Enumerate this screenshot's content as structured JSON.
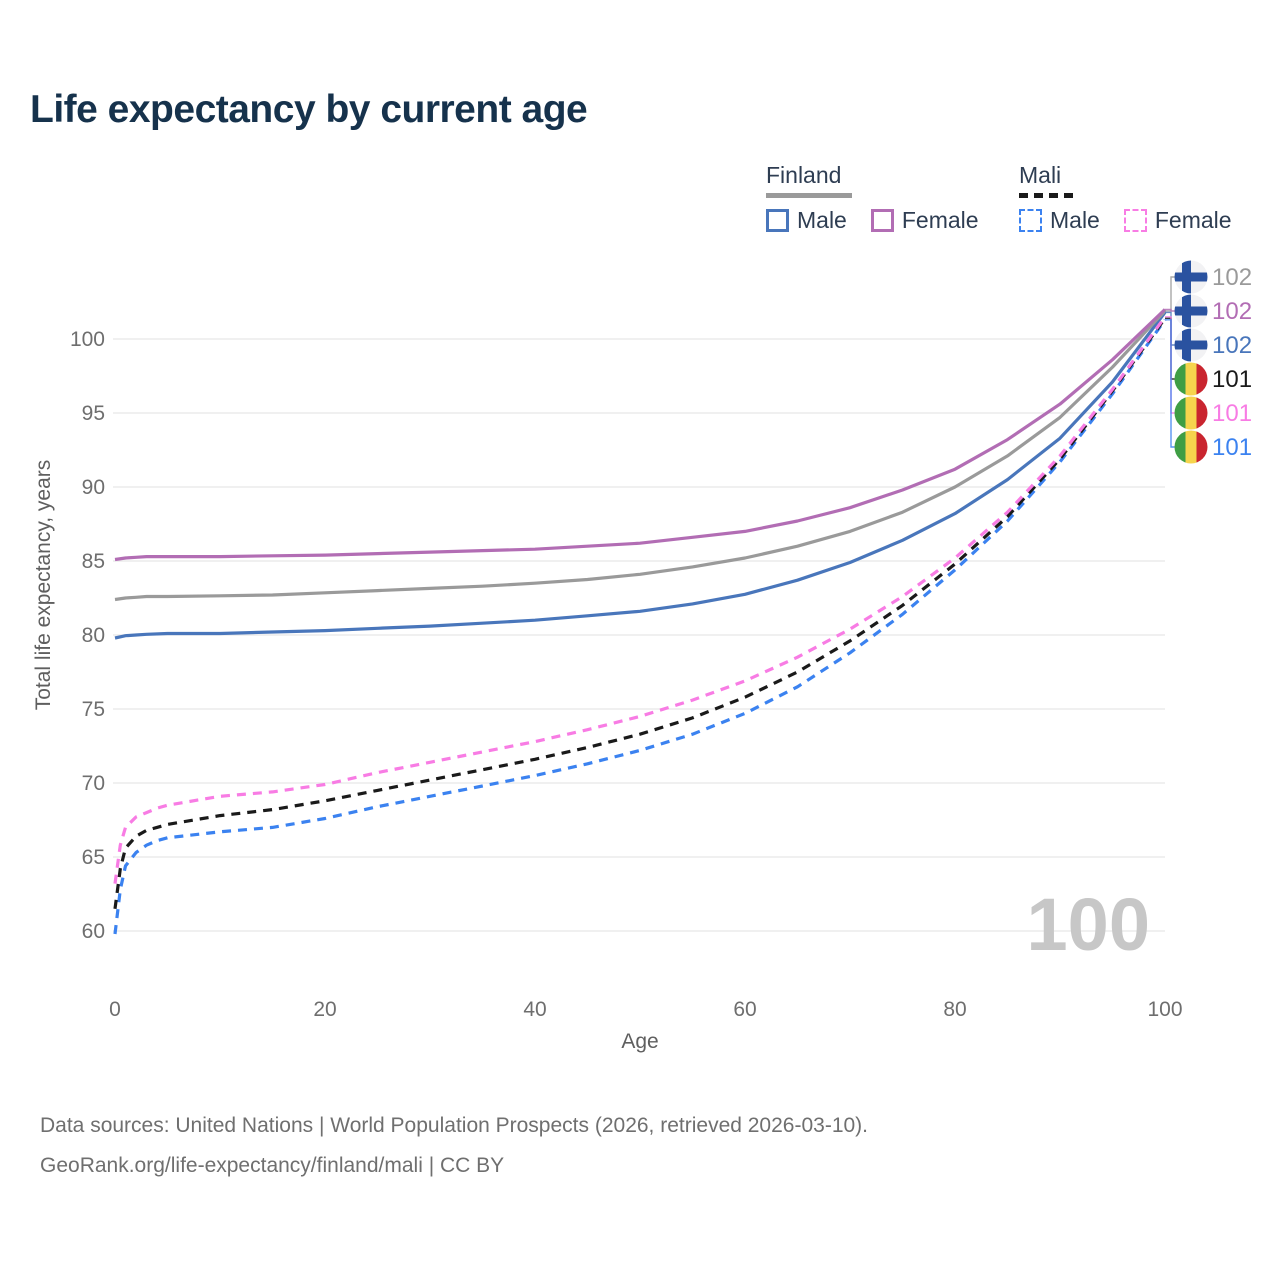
{
  "title": "Life expectancy by current age",
  "legend": {
    "finland": {
      "title": "Finland",
      "male": "Male",
      "female": "Female",
      "line_color": "#9a9a9a"
    },
    "mali": {
      "title": "Mali",
      "male": "Male",
      "female": "Female",
      "line_color": "#1a1a1a"
    }
  },
  "watermark": "100",
  "footer": {
    "line1": "Data sources: United Nations | World Population Prospects (2026, retrieved 2026-03-10).",
    "line2": "GeoRank.org/life-expectancy/finland/mali | CC BY"
  },
  "flag_colors": {
    "finland": {
      "bg": "#f2f2f4",
      "cross": "#2a52a0"
    },
    "mali": {
      "green": "#3f9e44",
      "yellow": "#f6d44d",
      "red": "#c9252f"
    }
  },
  "chart_data": {
    "type": "line",
    "xlabel": "Age",
    "ylabel": "Total life expectancy, years",
    "xlim": [
      0,
      100
    ],
    "ylim": [
      59.5,
      103
    ],
    "xticks": [
      0,
      20,
      40,
      60,
      80,
      100
    ],
    "yticks": [
      60,
      65,
      70,
      75,
      80,
      85,
      90,
      95,
      100
    ],
    "grid": "horizontal",
    "legend_position": "top-right",
    "series": [
      {
        "key": "finland-male",
        "name": "Finland Male",
        "color": "#4976bb",
        "dash": false,
        "points": [
          [
            0,
            79.8
          ],
          [
            1,
            79.95
          ],
          [
            2,
            80.0
          ],
          [
            3,
            80.05
          ],
          [
            5,
            80.1
          ],
          [
            10,
            80.1
          ],
          [
            15,
            80.2
          ],
          [
            20,
            80.3
          ],
          [
            25,
            80.45
          ],
          [
            30,
            80.6
          ],
          [
            35,
            80.8
          ],
          [
            40,
            81.0
          ],
          [
            45,
            81.3
          ],
          [
            50,
            81.6
          ],
          [
            55,
            82.1
          ],
          [
            60,
            82.75
          ],
          [
            65,
            83.7
          ],
          [
            70,
            84.9
          ],
          [
            75,
            86.4
          ],
          [
            80,
            88.2
          ],
          [
            85,
            90.5
          ],
          [
            90,
            93.3
          ],
          [
            95,
            97.1
          ],
          [
            100,
            101.8
          ]
        ]
      },
      {
        "key": "finland-both",
        "name": "Finland Both sexes",
        "color": "#9a9a9a",
        "dash": false,
        "points": [
          [
            0,
            82.4
          ],
          [
            1,
            82.5
          ],
          [
            2,
            82.55
          ],
          [
            3,
            82.6
          ],
          [
            5,
            82.6
          ],
          [
            10,
            82.65
          ],
          [
            15,
            82.7
          ],
          [
            20,
            82.85
          ],
          [
            25,
            83.0
          ],
          [
            30,
            83.15
          ],
          [
            35,
            83.3
          ],
          [
            40,
            83.5
          ],
          [
            45,
            83.75
          ],
          [
            50,
            84.1
          ],
          [
            55,
            84.6
          ],
          [
            60,
            85.2
          ],
          [
            65,
            86.0
          ],
          [
            70,
            87.0
          ],
          [
            75,
            88.3
          ],
          [
            80,
            90.0
          ],
          [
            85,
            92.1
          ],
          [
            90,
            94.7
          ],
          [
            95,
            98.1
          ],
          [
            100,
            101.9
          ]
        ]
      },
      {
        "key": "finland-female",
        "name": "Finland Female",
        "color": "#b26db4",
        "dash": false,
        "points": [
          [
            0,
            85.1
          ],
          [
            1,
            85.2
          ],
          [
            2,
            85.25
          ],
          [
            3,
            85.3
          ],
          [
            5,
            85.3
          ],
          [
            10,
            85.3
          ],
          [
            15,
            85.35
          ],
          [
            20,
            85.4
          ],
          [
            25,
            85.5
          ],
          [
            30,
            85.6
          ],
          [
            35,
            85.7
          ],
          [
            40,
            85.8
          ],
          [
            45,
            86.0
          ],
          [
            50,
            86.2
          ],
          [
            55,
            86.6
          ],
          [
            60,
            87.0
          ],
          [
            65,
            87.7
          ],
          [
            70,
            88.6
          ],
          [
            75,
            89.8
          ],
          [
            80,
            91.2
          ],
          [
            85,
            93.2
          ],
          [
            90,
            95.6
          ],
          [
            95,
            98.6
          ],
          [
            100,
            102.0
          ]
        ]
      },
      {
        "key": "mali-male",
        "name": "Mali Male",
        "color": "#3b82f0",
        "dash": true,
        "points": [
          [
            0,
            59.8
          ],
          [
            0.5,
            62.8
          ],
          [
            1,
            64.4
          ],
          [
            2,
            65.3
          ],
          [
            3,
            65.8
          ],
          [
            4,
            66.1
          ],
          [
            5,
            66.3
          ],
          [
            10,
            66.7
          ],
          [
            15,
            67.0
          ],
          [
            20,
            67.6
          ],
          [
            25,
            68.4
          ],
          [
            30,
            69.1
          ],
          [
            35,
            69.8
          ],
          [
            40,
            70.5
          ],
          [
            45,
            71.3
          ],
          [
            50,
            72.2
          ],
          [
            55,
            73.3
          ],
          [
            60,
            74.7
          ],
          [
            65,
            76.5
          ],
          [
            70,
            78.8
          ],
          [
            75,
            81.4
          ],
          [
            80,
            84.4
          ],
          [
            85,
            87.7
          ],
          [
            90,
            91.7
          ],
          [
            95,
            96.3
          ],
          [
            100,
            101.3
          ]
        ]
      },
      {
        "key": "mali-both",
        "name": "Mali Both sexes",
        "color": "#1a1a1a",
        "dash": true,
        "points": [
          [
            0,
            61.5
          ],
          [
            0.5,
            64.2
          ],
          [
            1,
            65.6
          ],
          [
            2,
            66.4
          ],
          [
            3,
            66.8
          ],
          [
            4,
            67.0
          ],
          [
            5,
            67.2
          ],
          [
            10,
            67.8
          ],
          [
            15,
            68.2
          ],
          [
            20,
            68.8
          ],
          [
            25,
            69.5
          ],
          [
            30,
            70.2
          ],
          [
            35,
            70.9
          ],
          [
            40,
            71.6
          ],
          [
            45,
            72.4
          ],
          [
            50,
            73.3
          ],
          [
            55,
            74.4
          ],
          [
            60,
            75.8
          ],
          [
            65,
            77.5
          ],
          [
            70,
            79.6
          ],
          [
            75,
            82.0
          ],
          [
            80,
            84.8
          ],
          [
            85,
            88.0
          ],
          [
            90,
            91.9
          ],
          [
            95,
            96.5
          ],
          [
            100,
            101.4
          ]
        ]
      },
      {
        "key": "mali-female",
        "name": "Mali Female",
        "color": "#f87ce4",
        "dash": true,
        "points": [
          [
            0,
            63.2
          ],
          [
            0.5,
            65.8
          ],
          [
            1,
            67.0
          ],
          [
            2,
            67.7
          ],
          [
            3,
            68.0
          ],
          [
            4,
            68.3
          ],
          [
            5,
            68.5
          ],
          [
            10,
            69.1
          ],
          [
            15,
            69.4
          ],
          [
            20,
            69.9
          ],
          [
            25,
            70.7
          ],
          [
            30,
            71.4
          ],
          [
            35,
            72.1
          ],
          [
            40,
            72.8
          ],
          [
            45,
            73.6
          ],
          [
            50,
            74.5
          ],
          [
            55,
            75.6
          ],
          [
            60,
            76.9
          ],
          [
            65,
            78.5
          ],
          [
            70,
            80.4
          ],
          [
            75,
            82.6
          ],
          [
            80,
            85.2
          ],
          [
            85,
            88.3
          ],
          [
            90,
            92.1
          ],
          [
            95,
            96.6
          ],
          [
            100,
            101.5
          ]
        ]
      }
    ],
    "end_labels": [
      {
        "series": "finland-both",
        "value": "102",
        "flag": "finland"
      },
      {
        "series": "finland-female",
        "value": "102",
        "flag": "finland"
      },
      {
        "series": "finland-male",
        "value": "102",
        "flag": "finland"
      },
      {
        "series": "mali-both",
        "value": "101",
        "flag": "mali"
      },
      {
        "series": "mali-female",
        "value": "101",
        "flag": "mali"
      },
      {
        "series": "mali-male",
        "value": "101",
        "flag": "mali"
      }
    ]
  }
}
